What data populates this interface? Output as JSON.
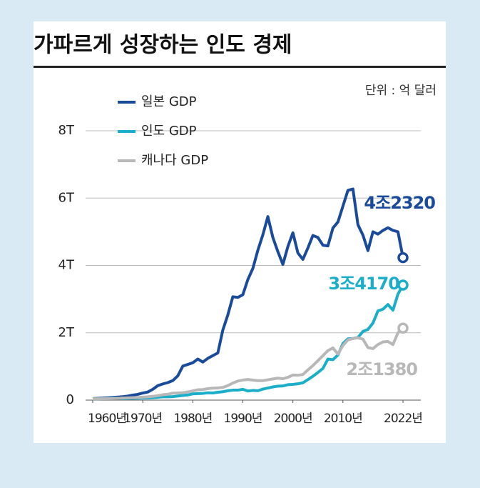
{
  "header": {
    "title": "가파르게 성장하는 인도 경제",
    "unit": "단위 : 억 달러"
  },
  "chart_data": {
    "type": "line",
    "x": [
      1960,
      1961,
      1962,
      1963,
      1964,
      1965,
      1966,
      1967,
      1968,
      1969,
      1970,
      1971,
      1972,
      1973,
      1974,
      1975,
      1976,
      1977,
      1978,
      1979,
      1980,
      1981,
      1982,
      1983,
      1984,
      1985,
      1986,
      1987,
      1988,
      1989,
      1990,
      1991,
      1992,
      1993,
      1994,
      1995,
      1996,
      1997,
      1998,
      1999,
      2000,
      2001,
      2002,
      2003,
      2004,
      2005,
      2006,
      2007,
      2008,
      2009,
      2010,
      2011,
      2012,
      2013,
      2014,
      2015,
      2016,
      2017,
      2018,
      2019,
      2020,
      2021,
      2022
    ],
    "xlim": [
      1960,
      2022
    ],
    "xticks": [
      {
        "value": 1960,
        "label": "1960년"
      },
      {
        "value": 1970,
        "label": "1970년"
      },
      {
        "value": 1980,
        "label": "1980년"
      },
      {
        "value": 1990,
        "label": "1990년"
      },
      {
        "value": 2000,
        "label": "2000년"
      },
      {
        "value": 2010,
        "label": "2010년"
      },
      {
        "value": 2022,
        "label": "2022년"
      }
    ],
    "ylim": [
      0,
      8
    ],
    "yticks": [
      0,
      {
        "value": 2,
        "label": "2T"
      },
      {
        "value": 4,
        "label": "4T"
      },
      {
        "value": 6,
        "label": "6T"
      },
      {
        "value": 8,
        "label": "8T"
      }
    ],
    "grid": true,
    "legend": "top-left",
    "series": [
      {
        "name": "일본 GDP",
        "color": "#1a4a9a",
        "values": [
          0.044,
          0.054,
          0.06,
          0.07,
          0.08,
          0.09,
          0.1,
          0.12,
          0.15,
          0.17,
          0.21,
          0.24,
          0.32,
          0.43,
          0.48,
          0.52,
          0.58,
          0.72,
          1.01,
          1.06,
          1.11,
          1.22,
          1.13,
          1.24,
          1.32,
          1.4,
          2.08,
          2.53,
          3.07,
          3.05,
          3.13,
          3.58,
          3.91,
          4.45,
          4.91,
          5.45,
          4.83,
          4.41,
          4.03,
          4.56,
          4.97,
          4.37,
          4.18,
          4.52,
          4.89,
          4.83,
          4.6,
          4.58,
          5.11,
          5.29,
          5.76,
          6.23,
          6.27,
          5.21,
          4.9,
          4.44,
          5.0,
          4.93,
          5.04,
          5.12,
          5.04,
          5.0,
          4.232
        ],
        "value_labels": [
          null,
          null,
          null,
          null,
          null,
          null,
          null,
          null,
          null,
          null,
          null,
          null,
          null,
          null,
          null,
          null,
          null,
          null,
          null,
          null,
          null,
          null,
          null,
          null,
          null,
          null,
          null,
          null,
          null,
          null,
          null,
          null,
          null,
          null,
          null,
          null,
          null,
          null,
          null,
          null,
          null,
          null,
          null,
          null,
          null,
          null,
          null,
          null,
          null,
          null,
          null,
          null,
          null,
          null,
          null,
          null,
          null,
          null,
          null,
          null,
          null,
          null,
          "4조2320"
        ]
      },
      {
        "name": "인도 GDP",
        "color": "#1aaec8",
        "values": [
          0.037,
          0.039,
          0.042,
          0.048,
          0.056,
          0.059,
          0.046,
          0.05,
          0.053,
          0.058,
          0.063,
          0.067,
          0.071,
          0.085,
          0.099,
          0.099,
          0.103,
          0.121,
          0.137,
          0.153,
          0.186,
          0.193,
          0.2,
          0.218,
          0.212,
          0.233,
          0.249,
          0.279,
          0.296,
          0.296,
          0.321,
          0.27,
          0.288,
          0.279,
          0.327,
          0.36,
          0.392,
          0.415,
          0.421,
          0.458,
          0.468,
          0.485,
          0.515,
          0.608,
          0.709,
          0.82,
          0.94,
          1.22,
          1.2,
          1.34,
          1.68,
          1.82,
          1.83,
          1.86,
          2.04,
          2.1,
          2.29,
          2.65,
          2.7,
          2.84,
          2.67,
          3.15,
          3.417
        ],
        "value_labels": [
          null,
          null,
          null,
          null,
          null,
          null,
          null,
          null,
          null,
          null,
          null,
          null,
          null,
          null,
          null,
          null,
          null,
          null,
          null,
          null,
          null,
          null,
          null,
          null,
          null,
          null,
          null,
          null,
          null,
          null,
          null,
          null,
          null,
          null,
          null,
          null,
          null,
          null,
          null,
          null,
          null,
          null,
          null,
          null,
          null,
          null,
          null,
          null,
          null,
          null,
          null,
          null,
          null,
          null,
          null,
          null,
          null,
          null,
          null,
          null,
          null,
          null,
          "3조4170"
        ]
      },
      {
        "name": "캐나다 GDP",
        "color": "#b8b8b8",
        "values": [
          0.041,
          0.041,
          0.042,
          0.045,
          0.049,
          0.054,
          0.061,
          0.066,
          0.072,
          0.079,
          0.088,
          0.099,
          0.113,
          0.131,
          0.161,
          0.174,
          0.207,
          0.212,
          0.219,
          0.243,
          0.274,
          0.307,
          0.314,
          0.341,
          0.355,
          0.364,
          0.377,
          0.431,
          0.507,
          0.566,
          0.596,
          0.612,
          0.594,
          0.578,
          0.578,
          0.604,
          0.629,
          0.652,
          0.634,
          0.678,
          0.745,
          0.739,
          0.76,
          0.896,
          1.026,
          1.17,
          1.32,
          1.47,
          1.55,
          1.37,
          1.62,
          1.79,
          1.83,
          1.85,
          1.81,
          1.56,
          1.53,
          1.65,
          1.73,
          1.74,
          1.65,
          2.0,
          2.138
        ],
        "value_labels": [
          null,
          null,
          null,
          null,
          null,
          null,
          null,
          null,
          null,
          null,
          null,
          null,
          null,
          null,
          null,
          null,
          null,
          null,
          null,
          null,
          null,
          null,
          null,
          null,
          null,
          null,
          null,
          null,
          null,
          null,
          null,
          null,
          null,
          null,
          null,
          null,
          null,
          null,
          null,
          null,
          null,
          null,
          null,
          null,
          null,
          null,
          null,
          null,
          null,
          null,
          null,
          null,
          null,
          null,
          null,
          null,
          null,
          null,
          null,
          null,
          null,
          null,
          "2조1380"
        ]
      }
    ]
  }
}
